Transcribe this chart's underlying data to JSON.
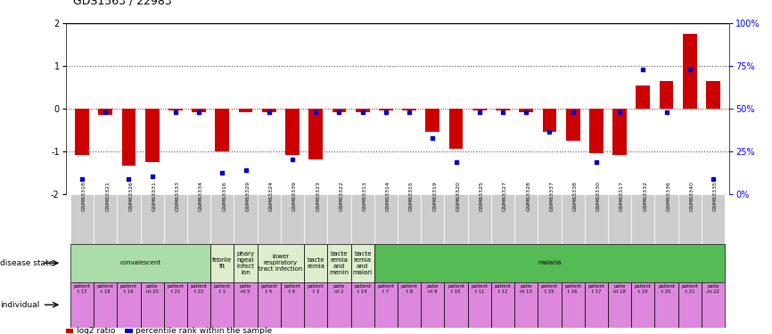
{
  "title": "GDS1563 / 22983",
  "samples": [
    "GSM63318",
    "GSM63321",
    "GSM63326",
    "GSM63331",
    "GSM63333",
    "GSM63334",
    "GSM63316",
    "GSM63329",
    "GSM63324",
    "GSM63339",
    "GSM63323",
    "GSM63322",
    "GSM63313",
    "GSM63314",
    "GSM63315",
    "GSM63319",
    "GSM63320",
    "GSM63325",
    "GSM63327",
    "GSM63328",
    "GSM63337",
    "GSM63338",
    "GSM63330",
    "GSM63317",
    "GSM63332",
    "GSM63336",
    "GSM63340",
    "GSM63335"
  ],
  "log2_ratio": [
    -1.1,
    -0.15,
    -1.35,
    -1.25,
    -0.05,
    -0.08,
    -1.0,
    -0.08,
    -0.08,
    -1.1,
    -1.2,
    -0.08,
    -0.08,
    -0.05,
    -0.05,
    -0.55,
    -0.95,
    -0.05,
    -0.05,
    -0.08,
    -0.55,
    -0.75,
    -1.05,
    -1.1,
    0.55,
    0.65,
    1.75,
    0.65
  ],
  "percentile_y": [
    -1.65,
    -0.08,
    -1.65,
    -1.6,
    -0.08,
    -0.08,
    -1.5,
    -1.45,
    -0.08,
    -1.2,
    -0.08,
    -0.08,
    -0.08,
    -0.08,
    -0.08,
    -0.7,
    -1.25,
    -0.08,
    -0.08,
    -0.08,
    -0.55,
    -0.08,
    -1.25,
    -0.08,
    0.92,
    -0.08,
    0.92,
    -1.65
  ],
  "disease_groups": [
    {
      "label": "convalescent",
      "start": 0,
      "end": 5,
      "color": "#aaddaa"
    },
    {
      "label": "febrile\nfit",
      "start": 6,
      "end": 6,
      "color": "#ddeecc"
    },
    {
      "label": "phary\nngeal\ninfect\nion",
      "start": 7,
      "end": 7,
      "color": "#ddeecc"
    },
    {
      "label": "lower\nrespiratory\ntract infection",
      "start": 8,
      "end": 9,
      "color": "#ddeecc"
    },
    {
      "label": "bacte\nremia",
      "start": 10,
      "end": 10,
      "color": "#ddeecc"
    },
    {
      "label": "bacte\nremia\nand\nmenin",
      "start": 11,
      "end": 11,
      "color": "#ddeecc"
    },
    {
      "label": "bacte\nremia\nand\nmalari",
      "start": 12,
      "end": 12,
      "color": "#ddeecc"
    },
    {
      "label": "malaria",
      "start": 13,
      "end": 27,
      "color": "#55bb55"
    }
  ],
  "individual_labels": [
    "patient\nt 17",
    "patient\nt 18",
    "patient\nt 19",
    "patie\nnt 20",
    "patient\nt 21",
    "patient\nt 22",
    "patient\nt 1",
    "patie\nnt 5",
    "patient\nt 4",
    "patient\nt 6",
    "patient\nt 3",
    "patie\nnt 2",
    "patient\nt 14",
    "patient\nt 7",
    "patient\nt 8",
    "patie\nnt 9",
    "patient\nt 10",
    "patient\nt 11",
    "patient\nt 12",
    "patie\nnt 13",
    "patient\nt 15",
    "patient\nt 16",
    "patient\nt 17",
    "patie\nnt 18",
    "patient\nt 19",
    "patient\nt 20",
    "patient\nt 21",
    "patie\nnt 22"
  ],
  "bar_color": "#cc0000",
  "percentile_color": "#0000cc",
  "ylim": [
    -2,
    2
  ],
  "bg_color": "#ffffff",
  "indiv_color": "#dd88dd",
  "sample_bg_color": "#cccccc"
}
